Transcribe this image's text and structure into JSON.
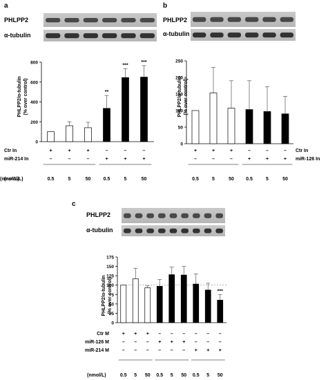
{
  "panels": {
    "a": {
      "letter": "a",
      "blot_top": "PHLPP2",
      "blot_bottom": "α-tubulin",
      "ylabel": "PHLPP2/α-tubulin",
      "ylabel2": "(% over control)"
    },
    "b": {
      "letter": "b",
      "blot_top": "PHLPP2",
      "blot_bottom": "α-tubulin",
      "ylabel": "PHLPP2/α-tubulin",
      "ylabel2": "(% over control)"
    },
    "c": {
      "letter": "c",
      "blot_top": "PHLPP2",
      "blot_bottom": "α-tubulin",
      "ylabel": "PHLPP2/α-tubulin",
      "ylabel2": "(% over control)"
    }
  },
  "chart_data": [
    {
      "panel": "a",
      "type": "bar",
      "categories": [
        "0.5",
        "5",
        "50",
        "0.5",
        "5",
        "50"
      ],
      "values": [
        100,
        160,
        140,
        335,
        645,
        650
      ],
      "errors": [
        0,
        40,
        55,
        130,
        90,
        115
      ],
      "fills": [
        "white",
        "white",
        "white",
        "black",
        "black",
        "black"
      ],
      "significance": [
        "",
        "",
        "",
        "**",
        "***",
        "***"
      ],
      "ylim": [
        0,
        800
      ],
      "yticks": [
        0,
        200,
        400,
        600,
        800
      ],
      "rows": [
        {
          "label": "Ctr In",
          "marks": [
            "+",
            "+",
            "+",
            "–",
            "–",
            "–"
          ]
        },
        {
          "label": "miR-214 In",
          "marks": [
            "–",
            "–",
            "–",
            "+",
            "+",
            "+"
          ]
        }
      ],
      "unit_label": "(nmol/L)"
    },
    {
      "panel": "b",
      "type": "bar",
      "categories": [
        "0.5",
        "5",
        "50",
        "0.5",
        "5",
        "50"
      ],
      "values": [
        100,
        153,
        107,
        103,
        97,
        90
      ],
      "errors": [
        0,
        77,
        83,
        87,
        75,
        53
      ],
      "fills": [
        "white",
        "white",
        "white",
        "black",
        "black",
        "black"
      ],
      "significance": [
        "",
        "",
        "",
        "",
        "",
        ""
      ],
      "ylim": [
        0,
        250
      ],
      "yticks": [
        0,
        50,
        100,
        150,
        200,
        250
      ],
      "rows": [
        {
          "label": "Ctr In",
          "marks": [
            "+",
            "+",
            "+",
            "–",
            "–",
            "–"
          ]
        },
        {
          "label": "miR-126 In",
          "marks": [
            "–",
            "–",
            "–",
            "+",
            "+",
            "+"
          ]
        }
      ],
      "unit_label": "(nmol/L)"
    },
    {
      "panel": "c",
      "type": "bar",
      "categories": [
        "0.5",
        "5",
        "50",
        "0.5",
        "5",
        "50",
        "0.5",
        "5",
        "50"
      ],
      "values": [
        100,
        117,
        93,
        97,
        128,
        127,
        103,
        87,
        60
      ],
      "errors": [
        0,
        28,
        5,
        18,
        20,
        23,
        27,
        18,
        15
      ],
      "fills": [
        "white",
        "white",
        "white",
        "black",
        "black",
        "black",
        "black",
        "black",
        "black"
      ],
      "significance": [
        "",
        "",
        "",
        "",
        "",
        "",
        "",
        "",
        "***"
      ],
      "ylim": [
        0,
        175
      ],
      "yticks": [
        0,
        25,
        50,
        75,
        100,
        125,
        150,
        175
      ],
      "reference_line": 100,
      "rows": [
        {
          "label": "Ctr M",
          "marks": [
            "+",
            "+",
            "+",
            "–",
            "–",
            "–",
            "–",
            "–",
            "–"
          ]
        },
        {
          "label": "miR-126 M",
          "marks": [
            "–",
            "–",
            "–",
            "+",
            "+",
            "+",
            "–",
            "–",
            "–"
          ]
        },
        {
          "label": "miR-214 M",
          "marks": [
            "–",
            "–",
            "–",
            "–",
            "–",
            "–",
            "+",
            "+",
            "+"
          ]
        }
      ],
      "unit_label": "(nmol/L)"
    }
  ]
}
